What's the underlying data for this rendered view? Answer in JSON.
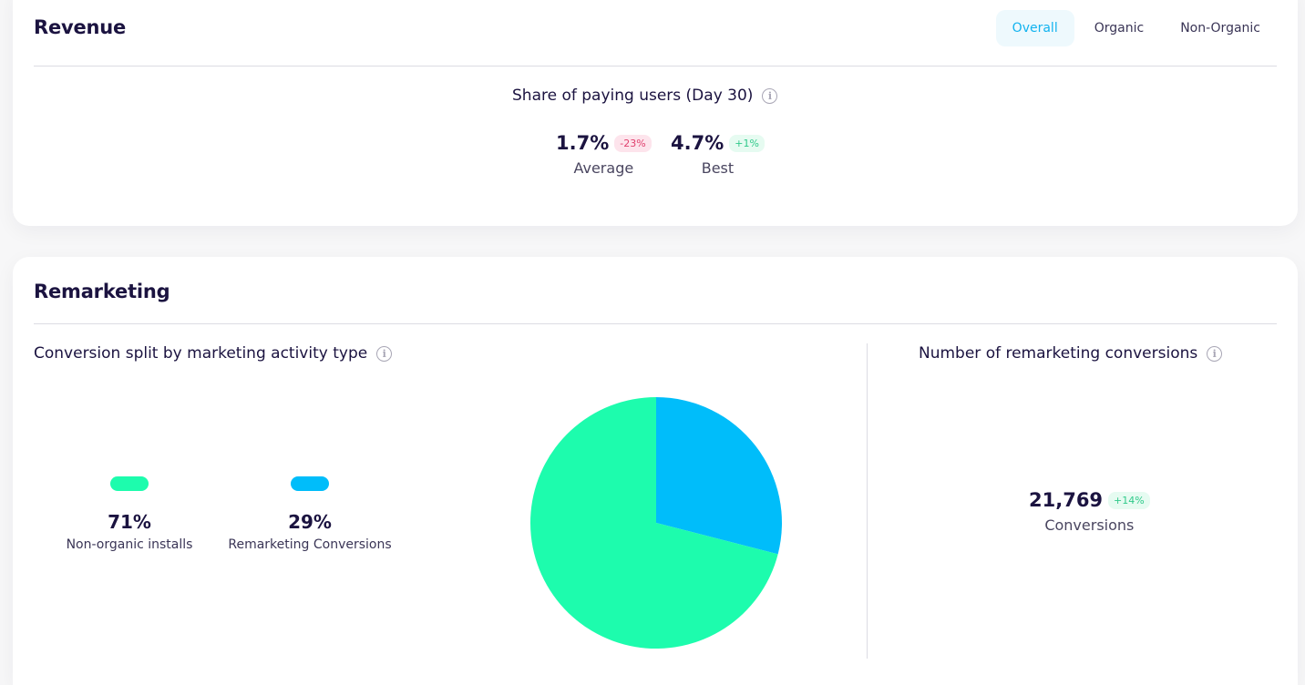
{
  "revenue": {
    "title": "Revenue",
    "tabs": [
      {
        "label": "Overall",
        "active": true
      },
      {
        "label": "Organic",
        "active": false
      },
      {
        "label": "Non-Organic",
        "active": false
      }
    ],
    "metric_title": "Share of paying users (Day 30)",
    "average": {
      "value": "1.7%",
      "change": "-23%",
      "label": "Average"
    },
    "best": {
      "value": "4.7%",
      "change": "+1%",
      "label": "Best"
    }
  },
  "remarketing": {
    "title": "Remarketing",
    "split_title": "Conversion split by marketing activity type",
    "conversions_title": "Number of remarketing conversions",
    "legend": [
      {
        "value": "71%",
        "label": "Non-organic installs",
        "color": "#1dfcad"
      },
      {
        "value": "29%",
        "label": "Remarketing Conversions",
        "color": "#00bdfa"
      }
    ],
    "conversions": {
      "value": "21,769",
      "change": "+14%",
      "label": "Conversions"
    }
  },
  "icons": {
    "info": "info-icon",
    "info_glyph": "i"
  },
  "chart_data": {
    "type": "pie",
    "categories": [
      "Non-organic installs",
      "Remarketing Conversions"
    ],
    "values": [
      71,
      29
    ],
    "colors": [
      "#1dfcad",
      "#00bdfa"
    ]
  }
}
